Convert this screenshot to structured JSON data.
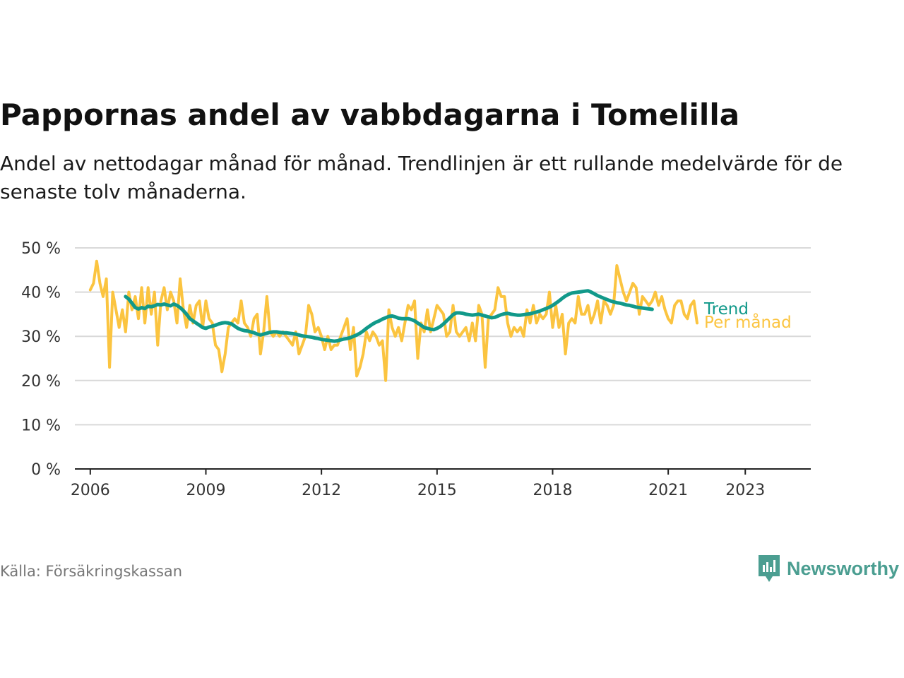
{
  "title": "Pappornas andel av vabbdagarna i Tomelilla",
  "subtitle": "Andel av nettodagar månad för månad. Trendlinjen är ett rullande medelvärde för de senaste tolv månaderna.",
  "source": "Källa: Försäkringskassan",
  "brand": {
    "name": "Newsworthy",
    "icon": "newsworthy-logo-icon"
  },
  "colors": {
    "monthly": "#fbc440",
    "trend": "#11998a",
    "grid": "#d9d9d9",
    "axis": "#222222",
    "brand": "#4b9e91"
  },
  "chart_data": {
    "type": "line",
    "x_unit": "year",
    "xlim": [
      2005.6,
      2024.7
    ],
    "ylim": [
      0,
      50
    ],
    "y_ticks": [
      0,
      10,
      20,
      30,
      40,
      50
    ],
    "y_tick_labels": [
      "0 %",
      "10 %",
      "20 %",
      "30 %",
      "40 %",
      "50 %"
    ],
    "x_ticks": [
      2006,
      2009,
      2012,
      2015,
      2018,
      2021,
      2023
    ],
    "x_tick_labels": [
      "2006",
      "2009",
      "2012",
      "2015",
      "2018",
      "2021",
      "2023"
    ],
    "grid": true,
    "legend": "line-end labels",
    "series": [
      {
        "name": "Per månad",
        "start": 2006.0,
        "step": 0.08333,
        "values": [
          40.5,
          42,
          47,
          42,
          39,
          43,
          23,
          40,
          36,
          32,
          36,
          31,
          40,
          36,
          39,
          34,
          41,
          33,
          41,
          35,
          40,
          28,
          38,
          41,
          36,
          40,
          38,
          33,
          43,
          36,
          32,
          37,
          33,
          37,
          38,
          32,
          38,
          34,
          33,
          28,
          27,
          22,
          26,
          32,
          33,
          34,
          33,
          38,
          33,
          32,
          30,
          34,
          35,
          26,
          31,
          39,
          31,
          30,
          31,
          30,
          31,
          30,
          29,
          28,
          31,
          26,
          28,
          30,
          37,
          35,
          31,
          32,
          30,
          27,
          30,
          27,
          28,
          28,
          30,
          32,
          34,
          27,
          32,
          21,
          23,
          26,
          31,
          29,
          31,
          30,
          28,
          29,
          20,
          36,
          32,
          30,
          32,
          29,
          33,
          37,
          36,
          38,
          25,
          33,
          31,
          36,
          31,
          34,
          37,
          36,
          35,
          30,
          31,
          37,
          31,
          30,
          31,
          32,
          29,
          33,
          29,
          37,
          35,
          23,
          34,
          35,
          36,
          41,
          39,
          39,
          33,
          30,
          32,
          31,
          32,
          30,
          36,
          33,
          37,
          33,
          35,
          34,
          35,
          40,
          32,
          37,
          32,
          35,
          26,
          33,
          34,
          33,
          39,
          35,
          35,
          37,
          33,
          35,
          38,
          33,
          38,
          37,
          35,
          37,
          46,
          43,
          40,
          38,
          40,
          42,
          41,
          35,
          39,
          38,
          37,
          38,
          40,
          37,
          39,
          36,
          34,
          33,
          37,
          38,
          38,
          35,
          34,
          37,
          38,
          33
        ]
      },
      {
        "name": "Trend",
        "start": 2006.9167,
        "step": 0.08333,
        "values": [
          39,
          38.4,
          37.5,
          36.5,
          36.2,
          36.5,
          36.3,
          36.8,
          36.7,
          36.9,
          37.2,
          37.1,
          37.3,
          37.1,
          36.9,
          37.3,
          37,
          36.5,
          35.8,
          35,
          34,
          33.5,
          33,
          32.5,
          32,
          31.8,
          32.1,
          32.3,
          32.5,
          32.8,
          33,
          33.1,
          33,
          32.8,
          32.3,
          31.8,
          31.5,
          31.3,
          31.2,
          31,
          30.8,
          30.5,
          30.3,
          30.5,
          30.7,
          30.9,
          31,
          31,
          30.9,
          30.8,
          30.8,
          30.7,
          30.6,
          30.5,
          30.3,
          30.1,
          30,
          29.9,
          29.8,
          29.6,
          29.5,
          29.3,
          29.2,
          29.1,
          29,
          28.9,
          29,
          29.2,
          29.4,
          29.5,
          29.7,
          30,
          30.3,
          30.7,
          31.2,
          31.8,
          32.3,
          32.8,
          33.2,
          33.5,
          33.9,
          34.2,
          34.5,
          34.6,
          34.4,
          34.1,
          34,
          34,
          34,
          33.8,
          33.5,
          33,
          32.5,
          32,
          31.8,
          31.6,
          31.5,
          31.8,
          32.2,
          32.8,
          33.5,
          34.2,
          34.9,
          35.3,
          35.3,
          35.2,
          35,
          34.9,
          34.8,
          34.9,
          35,
          34.8,
          34.6,
          34.4,
          34.2,
          34.3,
          34.6,
          34.9,
          35.1,
          35.2,
          35,
          34.9,
          34.8,
          34.8,
          34.9,
          35,
          35.1,
          35.3,
          35.5,
          35.7,
          36,
          36.3,
          36.6,
          37,
          37.5,
          38,
          38.6,
          39.1,
          39.5,
          39.8,
          39.9,
          40,
          40.1,
          40.2,
          40.3,
          40,
          39.6,
          39.2,
          38.9,
          38.6,
          38.3,
          38,
          37.8,
          37.6,
          37.5,
          37.3,
          37.1,
          37,
          36.8,
          36.6,
          36.5,
          36.4,
          36.3,
          36.2,
          36.1
        ]
      }
    ]
  }
}
